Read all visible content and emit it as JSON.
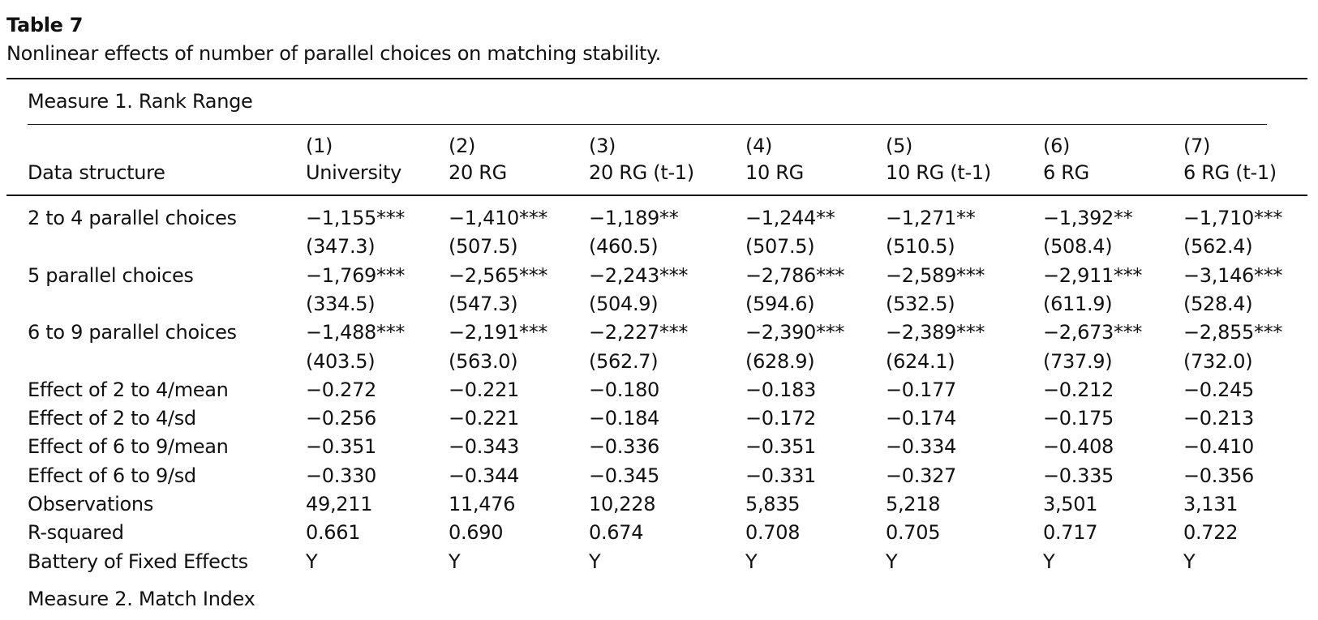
{
  "header": {
    "title": "Table 7",
    "caption": "Nonlinear effects of number of parallel choices on matching stability."
  },
  "table": {
    "section": "Measure 1. Rank Range",
    "stub_header": "Data structure",
    "columns": [
      {
        "number": "(1)",
        "name": "University"
      },
      {
        "number": "(2)",
        "name": "20 RG"
      },
      {
        "number": "(3)",
        "name": "20 RG (t-1)"
      },
      {
        "number": "(4)",
        "name": "10 RG"
      },
      {
        "number": "(5)",
        "name": "10 RG (t-1)"
      },
      {
        "number": "(6)",
        "name": "6 RG"
      },
      {
        "number": "(7)",
        "name": "6 RG (t-1)"
      }
    ],
    "rows": [
      {
        "label": "2 to 4 parallel choices",
        "values": [
          "−1,155***",
          "−1,410***",
          "−1,189**",
          "−1,244**",
          "−1,271**",
          "−1,392**",
          "−1,710***"
        ],
        "se": [
          "(347.3)",
          "(507.5)",
          "(460.5)",
          "(507.5)",
          "(510.5)",
          "(508.4)",
          "(562.4)"
        ]
      },
      {
        "label": "5 parallel choices",
        "values": [
          "−1,769***",
          "−2,565***",
          "−2,243***",
          "−2,786***",
          "−2,589***",
          "−2,911***",
          "−3,146***"
        ],
        "se": [
          "(334.5)",
          "(547.3)",
          "(504.9)",
          "(594.6)",
          "(532.5)",
          "(611.9)",
          "(528.4)"
        ]
      },
      {
        "label": "6 to 9 parallel choices",
        "values": [
          "−1,488***",
          "−2,191***",
          "−2,227***",
          "−2,390***",
          "−2,389***",
          "−2,673***",
          "−2,855***"
        ],
        "se": [
          "(403.5)",
          "(563.0)",
          "(562.7)",
          "(628.9)",
          "(624.1)",
          "(737.9)",
          "(732.0)"
        ]
      },
      {
        "label": "Effect of 2 to 4/mean",
        "values": [
          "−0.272",
          "−0.221",
          "−0.180",
          "−0.183",
          "−0.177",
          "−0.212",
          "−0.245"
        ]
      },
      {
        "label": "Effect of 2 to 4/sd",
        "values": [
          "−0.256",
          "−0.221",
          "−0.184",
          "−0.172",
          "−0.174",
          "−0.175",
          "−0.213"
        ]
      },
      {
        "label": "Effect of 6 to 9/mean",
        "values": [
          "−0.351",
          "−0.343",
          "−0.336",
          "−0.351",
          "−0.334",
          "−0.408",
          "−0.410"
        ]
      },
      {
        "label": "Effect of 6 to 9/sd",
        "values": [
          "−0.330",
          "−0.344",
          "−0.345",
          "−0.331",
          "−0.327",
          "−0.335",
          "−0.356"
        ]
      },
      {
        "label": "Observations",
        "values": [
          "49,211",
          "11,476",
          "10,228",
          "5,835",
          "5,218",
          "3,501",
          "3,131"
        ]
      },
      {
        "label": "R-squared",
        "values": [
          "0.661",
          "0.690",
          "0.674",
          "0.708",
          "0.705",
          "0.717",
          "0.722"
        ]
      },
      {
        "label": "Battery of Fixed Effects",
        "values": [
          "Y",
          "Y",
          "Y",
          "Y",
          "Y",
          "Y",
          "Y"
        ]
      }
    ],
    "next_section": "Measure 2. Match Index"
  }
}
